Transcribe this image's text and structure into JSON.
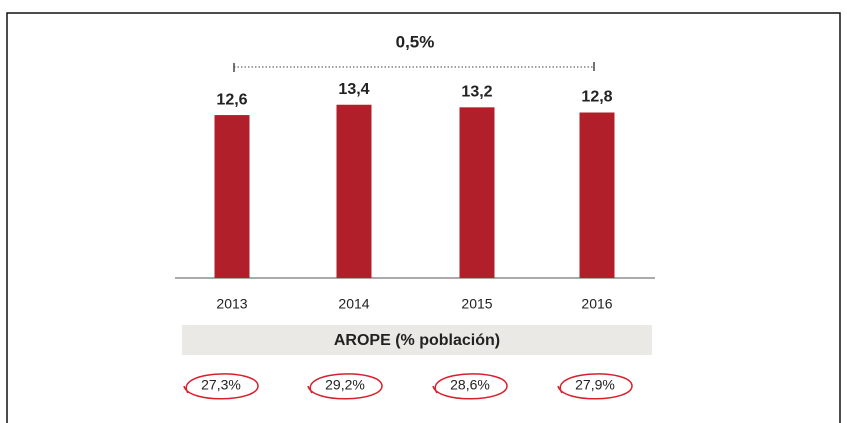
{
  "chart_data": {
    "type": "bar",
    "annotation": "0,5%",
    "categories": [
      "2013",
      "2014",
      "2015",
      "2016"
    ],
    "values": [
      12.6,
      13.4,
      13.2,
      12.8
    ],
    "value_labels": [
      "12,6",
      "13,4",
      "13,2",
      "12,8"
    ],
    "color": "#b01f2a",
    "table": {
      "title": "AROPE (% población)",
      "cells": [
        "27,3%",
        "29,2%",
        "28,6%",
        "27,9%"
      ]
    }
  }
}
